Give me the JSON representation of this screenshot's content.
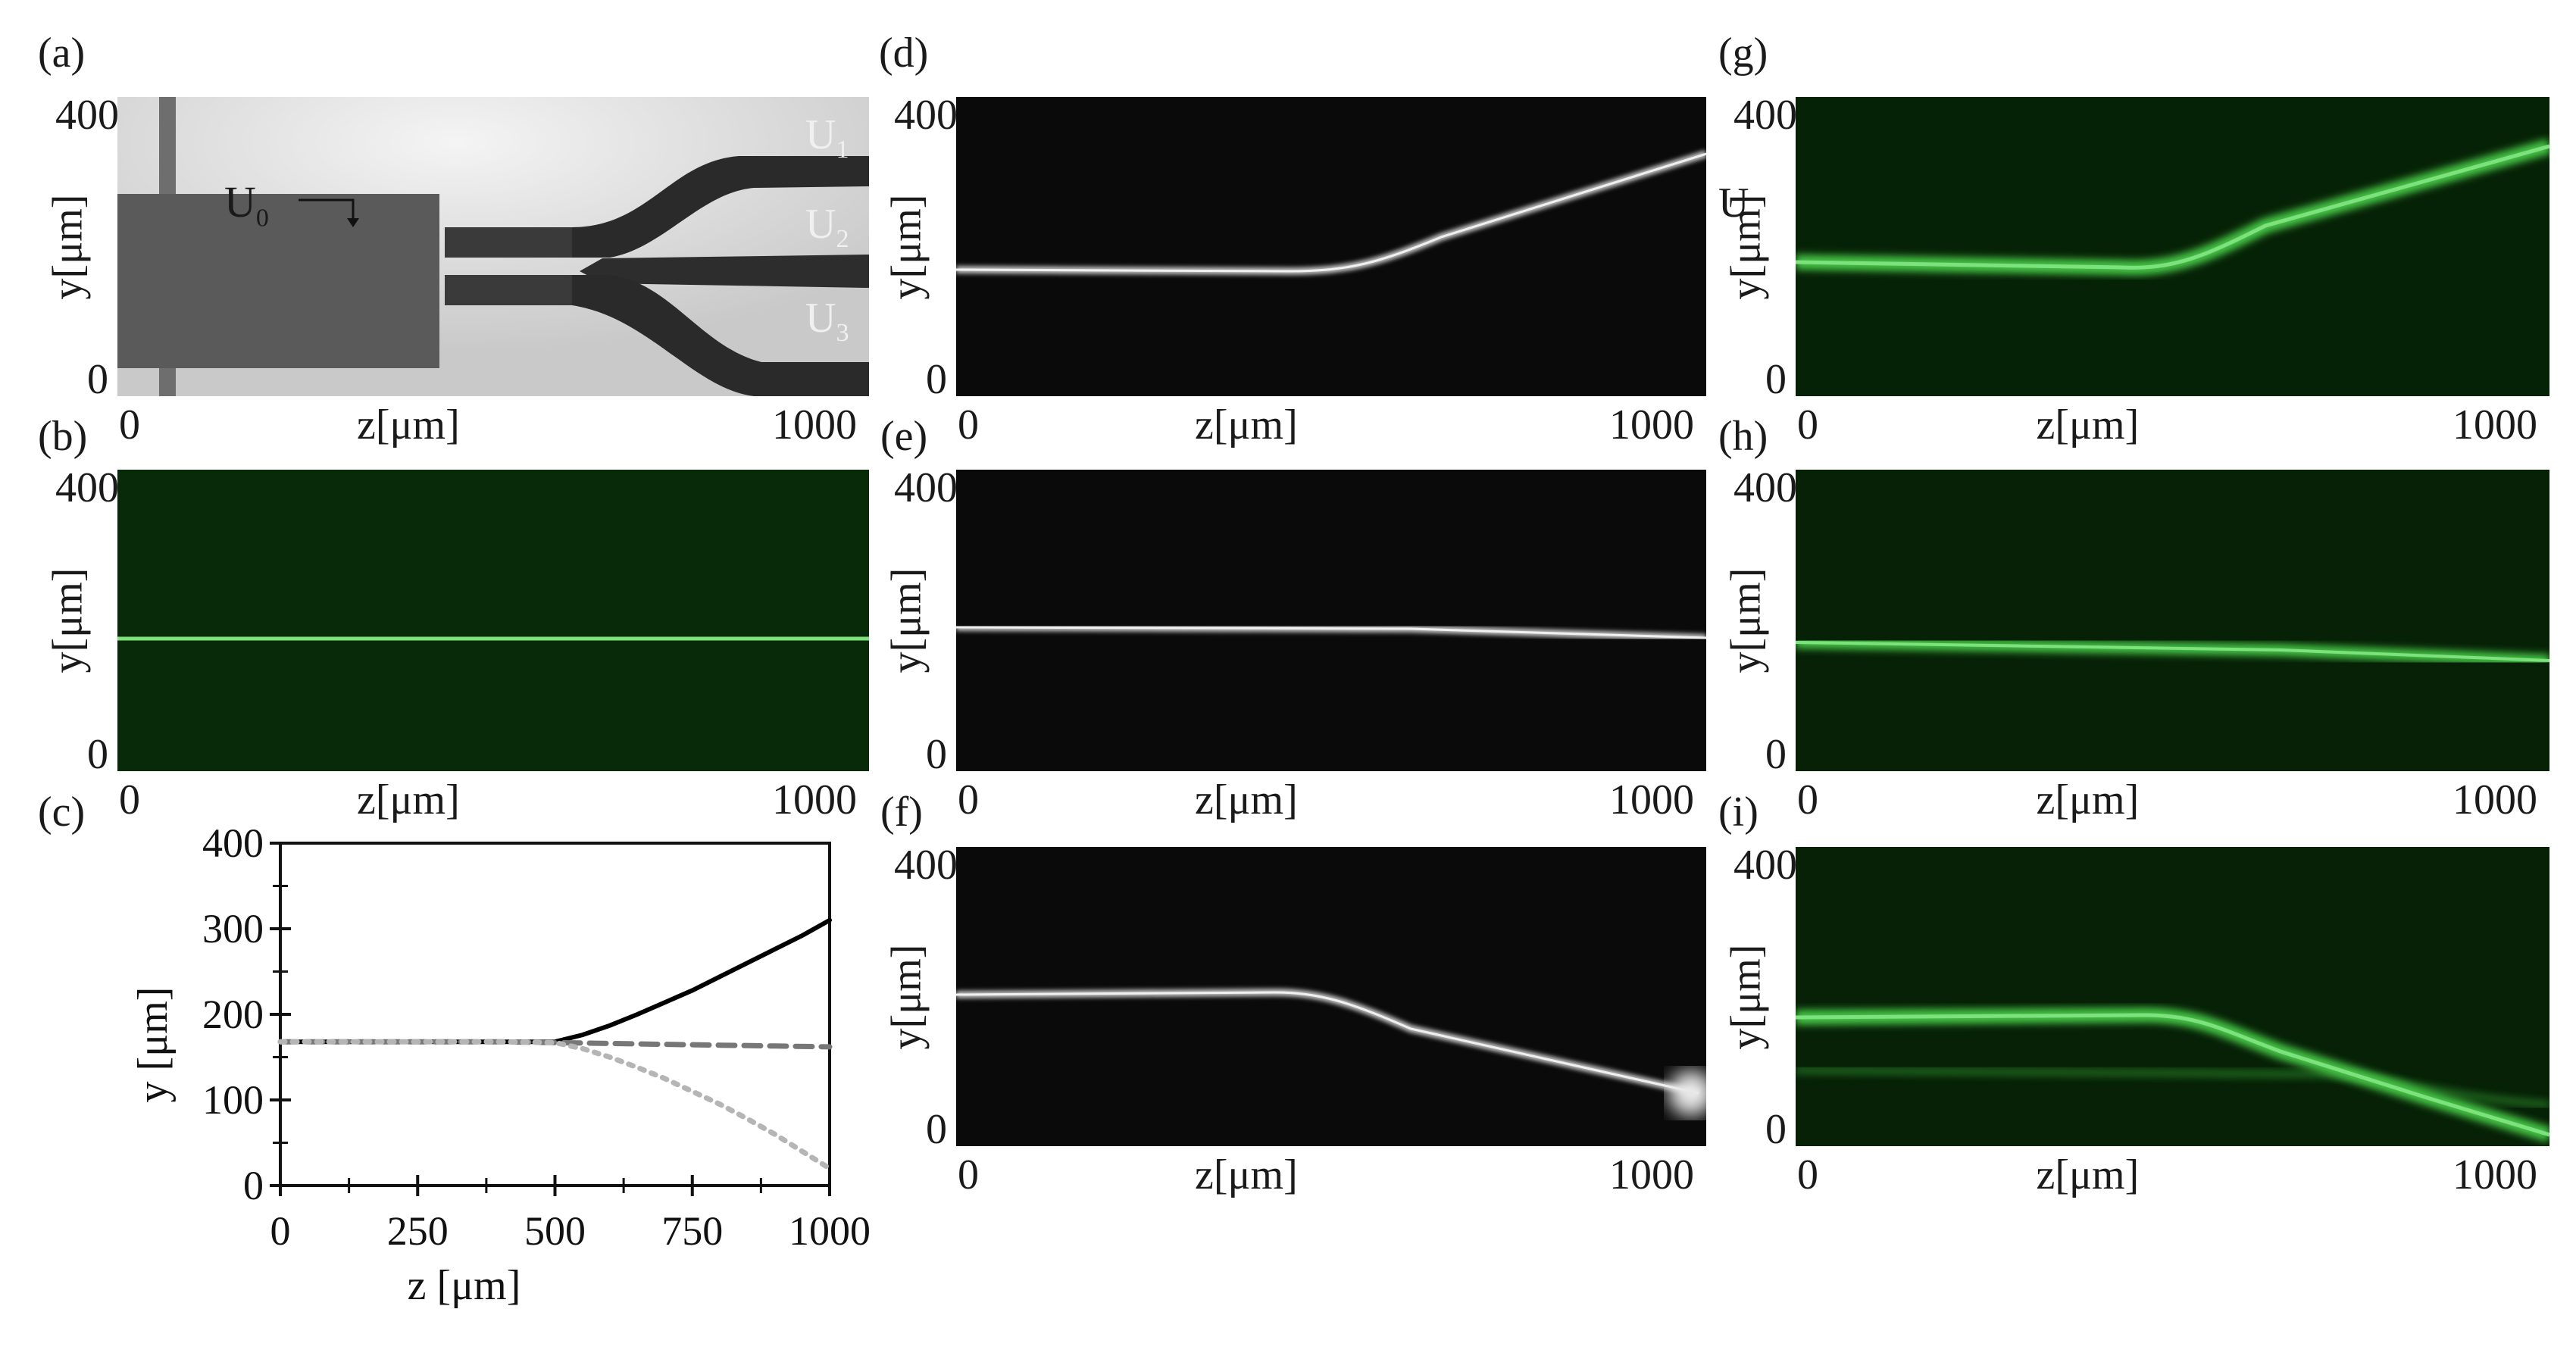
{
  "panels": {
    "a": {
      "label": "(a)",
      "u0": "U",
      "u0_sub": "0",
      "u1": "U",
      "u1_sub": "1",
      "u2": "U",
      "u2_sub": "2",
      "u3": "U",
      "u3_sub": "3"
    },
    "b": {
      "label": "(b)"
    },
    "c": {
      "label": "(c)"
    },
    "d": {
      "label": "(d)"
    },
    "e": {
      "label": "(e)"
    },
    "f": {
      "label": "(f)"
    },
    "g": {
      "label": "(g)",
      "u_label": "U"
    },
    "h": {
      "label": "(h)"
    },
    "i": {
      "label": "(i)"
    }
  },
  "image_axes": {
    "y_top": "400",
    "y_bottom": "0",
    "x_left": "0",
    "x_right": "1000",
    "xlabel": "z[μm]",
    "ylabel": "y[μm]"
  },
  "colors": {
    "fluorescence_green": "#4fd04f",
    "brightfield_bg": "#d9d9d9",
    "dark_bg": "#0a0a0a"
  },
  "chart_data": {
    "type": "line",
    "xlabel": "z [μm]",
    "ylabel": "y [μm]",
    "xlim": [
      0,
      1000
    ],
    "ylim": [
      0,
      400
    ],
    "x_ticks": [
      0,
      250,
      500,
      750,
      1000
    ],
    "y_ticks": [
      0,
      100,
      200,
      300,
      400
    ],
    "series": [
      {
        "style": "solid",
        "color": "#000000",
        "x": [
          0,
          100,
          200,
          300,
          400,
          500,
          550,
          600,
          650,
          700,
          750,
          800,
          850,
          900,
          950,
          1000
        ],
        "y": [
          168,
          168,
          168,
          168,
          168,
          168,
          176,
          187,
          200,
          214,
          228,
          244,
          260,
          276,
          292,
          310
        ]
      },
      {
        "style": "dashed",
        "color": "#777777",
        "x": [
          0,
          100,
          200,
          300,
          400,
          500,
          600,
          700,
          800,
          900,
          1000
        ],
        "y": [
          168,
          168,
          168,
          168,
          168,
          167,
          166,
          165,
          164,
          163,
          162
        ]
      },
      {
        "style": "dotted",
        "color": "#b5b5b5",
        "x": [
          0,
          100,
          200,
          300,
          400,
          500,
          550,
          600,
          650,
          700,
          750,
          800,
          850,
          900,
          950,
          1000
        ],
        "y": [
          168,
          168,
          168,
          168,
          168,
          167,
          160,
          150,
          138,
          125,
          110,
          95,
          78,
          60,
          40,
          20
        ]
      }
    ]
  }
}
